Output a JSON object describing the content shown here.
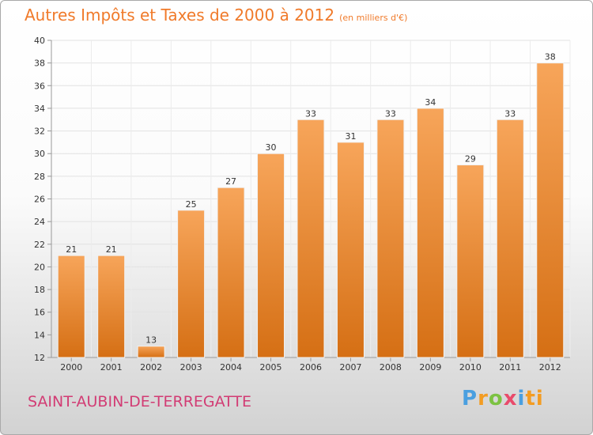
{
  "header": {
    "title": "Autres Impôts et Taxes de 2000 à 2012",
    "subtitle": "(en milliers d'€)"
  },
  "footer": {
    "commune": "SAINT-AUBIN-DE-TERREGATTE",
    "brand_letters": [
      "P",
      "r",
      "o",
      "x",
      "i",
      "ti"
    ]
  },
  "colors": {
    "bar_top": "#f7a55a",
    "bar_bottom": "#d56f14",
    "accent": "#f07a2a"
  },
  "chart_data": {
    "type": "bar",
    "categories": [
      "2000",
      "2001",
      "2002",
      "2003",
      "2004",
      "2005",
      "2006",
      "2007",
      "2008",
      "2009",
      "2010",
      "2011",
      "2012"
    ],
    "values": [
      21,
      21,
      13,
      25,
      27,
      30,
      33,
      31,
      33,
      34,
      29,
      33,
      38
    ],
    "title": "Autres Impôts et Taxes de 2000 à 2012",
    "ylim": [
      12,
      40
    ],
    "yticks": [
      12,
      14,
      16,
      18,
      20,
      22,
      24,
      26,
      28,
      30,
      32,
      34,
      36,
      38,
      40
    ],
    "grid": true
  }
}
